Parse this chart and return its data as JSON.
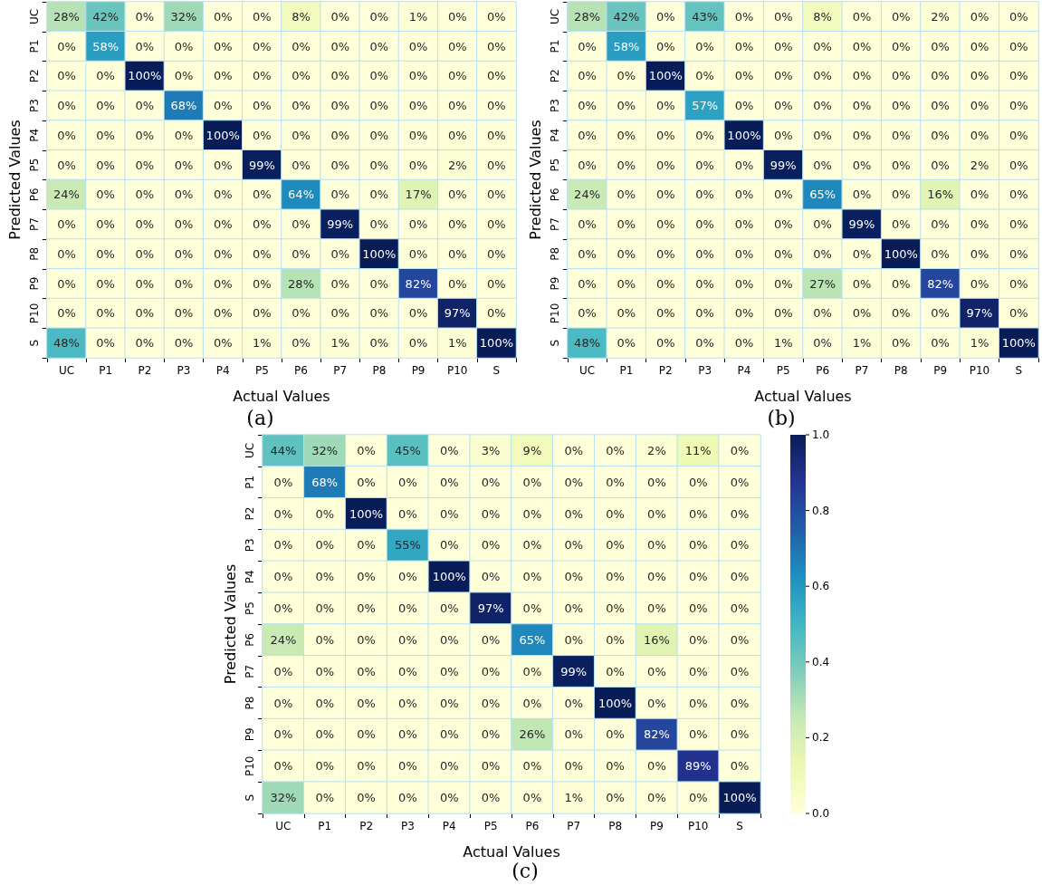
{
  "chart_data": [
    {
      "type": "heatmap",
      "xlabel": "Actual Values",
      "ylabel": "Predicted Values",
      "annotations": [
        "(a)"
      ],
      "categories": [
        "UC",
        "P1",
        "P2",
        "P3",
        "P4",
        "P5",
        "P6",
        "P7",
        "P8",
        "P9",
        "P10",
        "S"
      ],
      "y_categories": [
        "UC",
        "P1",
        "P2",
        "P3",
        "P4",
        "P5",
        "P6",
        "P7",
        "P8",
        "P9",
        "P10",
        "S"
      ],
      "cells": [
        [
          0.28,
          0.42,
          0,
          0.32,
          0,
          0,
          0.08,
          0,
          0,
          0.01,
          0,
          0
        ],
        [
          0,
          0.58,
          0,
          0,
          0,
          0,
          0,
          0,
          0,
          0,
          0,
          0
        ],
        [
          0,
          0,
          1,
          0,
          0,
          0,
          0,
          0,
          0,
          0,
          0,
          0
        ],
        [
          0,
          0,
          0,
          0.68,
          0,
          0,
          0,
          0,
          0,
          0,
          0,
          0
        ],
        [
          0,
          0,
          0,
          0,
          1,
          0,
          0,
          0,
          0,
          0,
          0,
          0
        ],
        [
          0,
          0,
          0,
          0,
          0,
          0.99,
          0,
          0,
          0,
          0,
          0.02,
          0
        ],
        [
          0.24,
          0,
          0,
          0,
          0,
          0,
          0.64,
          0,
          0,
          0.17,
          0,
          0
        ],
        [
          0,
          0,
          0,
          0,
          0,
          0,
          0,
          0.99,
          0,
          0,
          0,
          0
        ],
        [
          0,
          0,
          0,
          0,
          0,
          0,
          0,
          0,
          1,
          0,
          0,
          0
        ],
        [
          0,
          0,
          0,
          0,
          0,
          0,
          0.28,
          0,
          0,
          0.82,
          0,
          0
        ],
        [
          0,
          0,
          0,
          0,
          0,
          0,
          0,
          0,
          0,
          0,
          0.97,
          0
        ],
        [
          0.48,
          0,
          0,
          0,
          0,
          0.01,
          0,
          0.01,
          0,
          0,
          0.01,
          1
        ]
      ],
      "cell_labels": [
        [
          "28%",
          "42%",
          "0%",
          "32%",
          "0%",
          "0%",
          "8%",
          "0%",
          "0%",
          "1%",
          "0%",
          "0%"
        ],
        [
          "0%",
          "58%",
          "0%",
          "0%",
          "0%",
          "0%",
          "0%",
          "0%",
          "0%",
          "0%",
          "0%",
          "0%"
        ],
        [
          "0%",
          "0%",
          "100%",
          "0%",
          "0%",
          "0%",
          "0%",
          "0%",
          "0%",
          "0%",
          "0%",
          "0%"
        ],
        [
          "0%",
          "0%",
          "0%",
          "68%",
          "0%",
          "0%",
          "0%",
          "0%",
          "0%",
          "0%",
          "0%",
          "0%"
        ],
        [
          "0%",
          "0%",
          "0%",
          "0%",
          "100%",
          "0%",
          "0%",
          "0%",
          "0%",
          "0%",
          "0%",
          "0%"
        ],
        [
          "0%",
          "0%",
          "0%",
          "0%",
          "0%",
          "99%",
          "0%",
          "0%",
          "0%",
          "0%",
          "2%",
          "0%"
        ],
        [
          "24%",
          "0%",
          "0%",
          "0%",
          "0%",
          "0%",
          "64%",
          "0%",
          "0%",
          "17%",
          "0%",
          "0%"
        ],
        [
          "0%",
          "0%",
          "0%",
          "0%",
          "0%",
          "0%",
          "0%",
          "99%",
          "0%",
          "0%",
          "0%",
          "0%"
        ],
        [
          "0%",
          "0%",
          "0%",
          "0%",
          "0%",
          "0%",
          "0%",
          "0%",
          "100%",
          "0%",
          "0%",
          "0%"
        ],
        [
          "0%",
          "0%",
          "0%",
          "0%",
          "0%",
          "0%",
          "28%",
          "0%",
          "0%",
          "82%",
          "0%",
          "0%"
        ],
        [
          "0%",
          "0%",
          "0%",
          "0%",
          "0%",
          "0%",
          "0%",
          "0%",
          "0%",
          "0%",
          "97%",
          "0%"
        ],
        [
          "48%",
          "0%",
          "0%",
          "0%",
          "0%",
          "1%",
          "0%",
          "1%",
          "0%",
          "0%",
          "1%",
          "100%"
        ]
      ]
    },
    {
      "type": "heatmap",
      "xlabel": "Actual Values",
      "ylabel": "Predicted Values",
      "annotations": [
        "(b)"
      ],
      "categories": [
        "UC",
        "P1",
        "P2",
        "P3",
        "P4",
        "P5",
        "P6",
        "P7",
        "P8",
        "P9",
        "P10",
        "S"
      ],
      "y_categories": [
        "UC",
        "P1",
        "P2",
        "P3",
        "P4",
        "P5",
        "P6",
        "P7",
        "P8",
        "P9",
        "P10",
        "S"
      ],
      "cells": [
        [
          0.28,
          0.42,
          0,
          0.43,
          0,
          0,
          0.08,
          0,
          0,
          0.02,
          0,
          0
        ],
        [
          0,
          0.58,
          0,
          0,
          0,
          0,
          0,
          0,
          0,
          0,
          0,
          0
        ],
        [
          0,
          0,
          1,
          0,
          0,
          0,
          0,
          0,
          0,
          0,
          0,
          0
        ],
        [
          0,
          0,
          0,
          0.57,
          0,
          0,
          0,
          0,
          0,
          0,
          0,
          0
        ],
        [
          0,
          0,
          0,
          0,
          1,
          0,
          0,
          0,
          0,
          0,
          0,
          0
        ],
        [
          0,
          0,
          0,
          0,
          0,
          0.99,
          0,
          0,
          0,
          0,
          0.02,
          0
        ],
        [
          0.24,
          0,
          0,
          0,
          0,
          0,
          0.65,
          0,
          0,
          0.16,
          0,
          0
        ],
        [
          0,
          0,
          0,
          0,
          0,
          0,
          0,
          0.99,
          0,
          0,
          0,
          0
        ],
        [
          0,
          0,
          0,
          0,
          0,
          0,
          0,
          0,
          1,
          0,
          0,
          0
        ],
        [
          0,
          0,
          0,
          0,
          0,
          0,
          0.27,
          0,
          0,
          0.82,
          0,
          0
        ],
        [
          0,
          0,
          0,
          0,
          0,
          0,
          0,
          0,
          0,
          0,
          0.97,
          0
        ],
        [
          0.48,
          0,
          0,
          0,
          0,
          0.01,
          0,
          0.01,
          0,
          0,
          0.01,
          1
        ]
      ],
      "cell_labels": [
        [
          "28%",
          "42%",
          "0%",
          "43%",
          "0%",
          "0%",
          "8%",
          "0%",
          "0%",
          "2%",
          "0%",
          "0%"
        ],
        [
          "0%",
          "58%",
          "0%",
          "0%",
          "0%",
          "0%",
          "0%",
          "0%",
          "0%",
          "0%",
          "0%",
          "0%"
        ],
        [
          "0%",
          "0%",
          "100%",
          "0%",
          "0%",
          "0%",
          "0%",
          "0%",
          "0%",
          "0%",
          "0%",
          "0%"
        ],
        [
          "0%",
          "0%",
          "0%",
          "57%",
          "0%",
          "0%",
          "0%",
          "0%",
          "0%",
          "0%",
          "0%",
          "0%"
        ],
        [
          "0%",
          "0%",
          "0%",
          "0%",
          "100%",
          "0%",
          "0%",
          "0%",
          "0%",
          "0%",
          "0%",
          "0%"
        ],
        [
          "0%",
          "0%",
          "0%",
          "0%",
          "0%",
          "99%",
          "0%",
          "0%",
          "0%",
          "0%",
          "2%",
          "0%"
        ],
        [
          "24%",
          "0%",
          "0%",
          "0%",
          "0%",
          "0%",
          "65%",
          "0%",
          "0%",
          "16%",
          "0%",
          "0%"
        ],
        [
          "0%",
          "0%",
          "0%",
          "0%",
          "0%",
          "0%",
          "0%",
          "99%",
          "0%",
          "0%",
          "0%",
          "0%"
        ],
        [
          "0%",
          "0%",
          "0%",
          "0%",
          "0%",
          "0%",
          "0%",
          "0%",
          "100%",
          "0%",
          "0%",
          "0%"
        ],
        [
          "0%",
          "0%",
          "0%",
          "0%",
          "0%",
          "0%",
          "27%",
          "0%",
          "0%",
          "82%",
          "0%",
          "0%"
        ],
        [
          "0%",
          "0%",
          "0%",
          "0%",
          "0%",
          "0%",
          "0%",
          "0%",
          "0%",
          "0%",
          "97%",
          "0%"
        ],
        [
          "48%",
          "0%",
          "0%",
          "0%",
          "0%",
          "1%",
          "0%",
          "1%",
          "0%",
          "0%",
          "1%",
          "100%"
        ]
      ]
    },
    {
      "type": "heatmap",
      "xlabel": "Actual Values",
      "ylabel": "Predicted Values",
      "annotations": [
        "(c)"
      ],
      "categories": [
        "UC",
        "P1",
        "P2",
        "P3",
        "P4",
        "P5",
        "P6",
        "P7",
        "P8",
        "P9",
        "P10",
        "S"
      ],
      "y_categories": [
        "UC",
        "P1",
        "P2",
        "P3",
        "P4",
        "P5",
        "P6",
        "P7",
        "P8",
        "P9",
        "P10",
        "S"
      ],
      "clim": [
        0,
        1
      ],
      "cticks": [
        {
          "value": 0,
          "label": "0.0"
        },
        {
          "value": 0.2,
          "label": "0.2"
        },
        {
          "value": 0.4,
          "label": "0.4"
        },
        {
          "value": 0.6,
          "label": "0.6"
        },
        {
          "value": 0.8,
          "label": "0.8"
        },
        {
          "value": 1,
          "label": "1.0"
        }
      ],
      "cells": [
        [
          0.44,
          0.32,
          0,
          0.45,
          0,
          0.03,
          0.09,
          0,
          0,
          0.02,
          0.11,
          0
        ],
        [
          0,
          0.68,
          0,
          0,
          0,
          0,
          0,
          0,
          0,
          0,
          0,
          0
        ],
        [
          0,
          0,
          1,
          0,
          0,
          0,
          0,
          0,
          0,
          0,
          0,
          0
        ],
        [
          0,
          0,
          0,
          0.55,
          0,
          0,
          0,
          0,
          0,
          0,
          0,
          0
        ],
        [
          0,
          0,
          0,
          0,
          1,
          0,
          0,
          0,
          0,
          0,
          0,
          0
        ],
        [
          0,
          0,
          0,
          0,
          0,
          0.97,
          0,
          0,
          0,
          0,
          0,
          0
        ],
        [
          0.24,
          0,
          0,
          0,
          0,
          0,
          0.65,
          0,
          0,
          0.16,
          0,
          0
        ],
        [
          0,
          0,
          0,
          0,
          0,
          0,
          0,
          0.99,
          0,
          0,
          0,
          0
        ],
        [
          0,
          0,
          0,
          0,
          0,
          0,
          0,
          0,
          1,
          0,
          0,
          0
        ],
        [
          0,
          0,
          0,
          0,
          0,
          0,
          0.26,
          0,
          0,
          0.82,
          0,
          0
        ],
        [
          0,
          0,
          0,
          0,
          0,
          0,
          0,
          0,
          0,
          0,
          0.89,
          0
        ],
        [
          0.32,
          0,
          0,
          0,
          0,
          0,
          0,
          0.01,
          0,
          0,
          0,
          1
        ]
      ],
      "cell_labels": [
        [
          "44%",
          "32%",
          "0%",
          "45%",
          "0%",
          "3%",
          "9%",
          "0%",
          "0%",
          "2%",
          "11%",
          "0%"
        ],
        [
          "0%",
          "68%",
          "0%",
          "0%",
          "0%",
          "0%",
          "0%",
          "0%",
          "0%",
          "0%",
          "0%",
          "0%"
        ],
        [
          "0%",
          "0%",
          "100%",
          "0%",
          "0%",
          "0%",
          "0%",
          "0%",
          "0%",
          "0%",
          "0%",
          "0%"
        ],
        [
          "0%",
          "0%",
          "0%",
          "55%",
          "0%",
          "0%",
          "0%",
          "0%",
          "0%",
          "0%",
          "0%",
          "0%"
        ],
        [
          "0%",
          "0%",
          "0%",
          "0%",
          "100%",
          "0%",
          "0%",
          "0%",
          "0%",
          "0%",
          "0%",
          "0%"
        ],
        [
          "0%",
          "0%",
          "0%",
          "0%",
          "0%",
          "97%",
          "0%",
          "0%",
          "0%",
          "0%",
          "0%",
          "0%"
        ],
        [
          "24%",
          "0%",
          "0%",
          "0%",
          "0%",
          "0%",
          "65%",
          "0%",
          "0%",
          "16%",
          "0%",
          "0%"
        ],
        [
          "0%",
          "0%",
          "0%",
          "0%",
          "0%",
          "0%",
          "0%",
          "99%",
          "0%",
          "0%",
          "0%",
          "0%"
        ],
        [
          "0%",
          "0%",
          "0%",
          "0%",
          "0%",
          "0%",
          "0%",
          "0%",
          "100%",
          "0%",
          "0%",
          "0%"
        ],
        [
          "0%",
          "0%",
          "0%",
          "0%",
          "0%",
          "0%",
          "26%",
          "0%",
          "0%",
          "82%",
          "0%",
          "0%"
        ],
        [
          "0%",
          "0%",
          "0%",
          "0%",
          "0%",
          "0%",
          "0%",
          "0%",
          "0%",
          "0%",
          "89%",
          "0%"
        ],
        [
          "32%",
          "0%",
          "0%",
          "0%",
          "0%",
          "0%",
          "0%",
          "1%",
          "0%",
          "0%",
          "0%",
          "100%"
        ]
      ]
    }
  ]
}
